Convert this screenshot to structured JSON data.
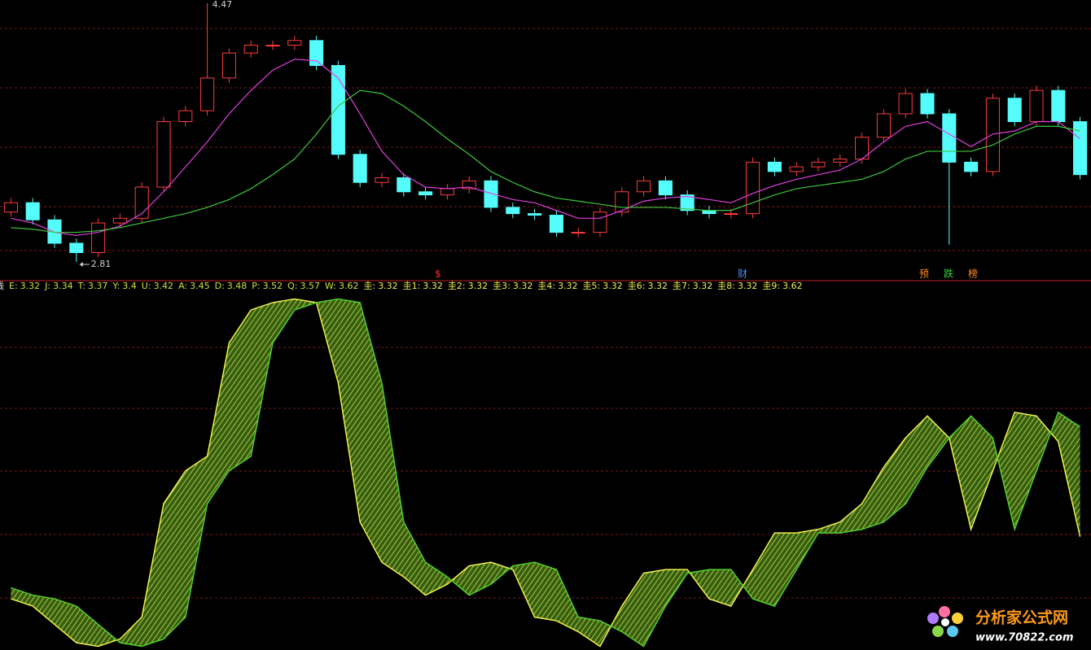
{
  "chart_data": [
    {
      "type": "candlestick",
      "open": [
        3.13,
        3.19,
        3.08,
        2.93,
        2.87,
        3.06,
        3.09,
        3.29,
        3.71,
        3.78,
        3.99,
        4.15,
        4.2,
        4.2,
        4.23,
        4.07,
        3.5,
        3.32,
        3.35,
        3.26,
        3.24,
        3.28,
        3.33,
        3.16,
        3.12,
        3.11,
        3.0,
        3.0,
        3.13,
        3.26,
        3.33,
        3.24,
        3.14,
        3.12,
        3.12,
        3.45,
        3.39,
        3.42,
        3.45,
        3.47,
        3.61,
        3.76,
        3.89,
        3.76,
        3.45,
        3.39,
        3.86,
        3.71,
        3.91,
        3.71
      ],
      "high": [
        3.22,
        3.22,
        3.11,
        2.96,
        3.09,
        3.12,
        3.32,
        3.74,
        3.81,
        4.47,
        4.18,
        4.23,
        4.23,
        4.26,
        4.26,
        4.1,
        3.53,
        3.38,
        3.38,
        3.29,
        3.31,
        3.36,
        3.36,
        3.19,
        3.15,
        3.14,
        3.03,
        3.16,
        3.29,
        3.36,
        3.36,
        3.27,
        3.17,
        3.15,
        3.48,
        3.48,
        3.45,
        3.48,
        3.5,
        3.64,
        3.79,
        3.92,
        3.92,
        3.79,
        3.48,
        3.89,
        3.89,
        3.94,
        3.94,
        3.74
      ],
      "low": [
        3.1,
        3.05,
        2.9,
        2.81,
        2.84,
        3.03,
        3.06,
        3.26,
        3.68,
        3.75,
        3.96,
        4.12,
        4.17,
        4.17,
        4.04,
        3.47,
        3.29,
        3.29,
        3.23,
        3.21,
        3.21,
        3.25,
        3.13,
        3.09,
        3.08,
        2.97,
        2.97,
        2.97,
        3.1,
        3.23,
        3.21,
        3.11,
        3.09,
        3.09,
        3.09,
        3.36,
        3.36,
        3.39,
        3.42,
        3.44,
        3.58,
        3.73,
        3.73,
        2.92,
        3.36,
        3.36,
        3.68,
        3.68,
        3.68,
        3.34
      ],
      "close": [
        3.19,
        3.08,
        2.93,
        2.87,
        3.06,
        3.09,
        3.29,
        3.71,
        3.78,
        3.99,
        4.15,
        4.2,
        4.2,
        4.23,
        4.07,
        3.5,
        3.32,
        3.35,
        3.26,
        3.24,
        3.28,
        3.33,
        3.16,
        3.12,
        3.11,
        3.0,
        3.0,
        3.13,
        3.26,
        3.33,
        3.24,
        3.14,
        3.12,
        3.12,
        3.45,
        3.39,
        3.42,
        3.45,
        3.47,
        3.61,
        3.76,
        3.89,
        3.76,
        3.45,
        3.39,
        3.86,
        3.71,
        3.91,
        3.71,
        3.37
      ],
      "up_color": "#ff3c3c",
      "down_color": "#54fcfc",
      "ylim": [
        2.69,
        4.49
      ],
      "series": [
        {
          "color": "#e040e0",
          "values": [
            3.09,
            3.06,
            3.0,
            2.98,
            3.0,
            3.04,
            3.12,
            3.26,
            3.42,
            3.58,
            3.76,
            3.91,
            4.04,
            4.11,
            4.1,
            3.99,
            3.76,
            3.52,
            3.37,
            3.29,
            3.28,
            3.29,
            3.25,
            3.21,
            3.19,
            3.14,
            3.09,
            3.09,
            3.14,
            3.2,
            3.22,
            3.23,
            3.21,
            3.19,
            3.25,
            3.3,
            3.34,
            3.37,
            3.4,
            3.47,
            3.58,
            3.68,
            3.71,
            3.63,
            3.55,
            3.63,
            3.65,
            3.71,
            3.71,
            3.6
          ]
        },
        {
          "color": "#3cc83c",
          "values": [
            3.03,
            3.02,
            3.0,
            3.0,
            3.01,
            3.03,
            3.06,
            3.09,
            3.12,
            3.16,
            3.21,
            3.28,
            3.37,
            3.47,
            3.63,
            3.81,
            3.91,
            3.89,
            3.81,
            3.71,
            3.6,
            3.5,
            3.39,
            3.32,
            3.26,
            3.22,
            3.2,
            3.18,
            3.16,
            3.16,
            3.16,
            3.15,
            3.14,
            3.14,
            3.19,
            3.24,
            3.28,
            3.3,
            3.32,
            3.34,
            3.39,
            3.47,
            3.52,
            3.52,
            3.52,
            3.56,
            3.63,
            3.68,
            3.68,
            3.65
          ]
        }
      ],
      "markers": [
        "$",
        "财",
        "预",
        "跌",
        "榜"
      ]
    },
    {
      "type": "line",
      "indicator_name": "线",
      "readouts": [
        {
          "label": "E:",
          "value": 3.32
        },
        {
          "label": "J:",
          "value": 3.34
        },
        {
          "label": "T:",
          "value": 3.37
        },
        {
          "label": "Y:",
          "value": 3.4
        },
        {
          "label": "U:",
          "value": 3.42
        },
        {
          "label": "A:",
          "value": 3.45
        },
        {
          "label": "D:",
          "value": 3.48
        },
        {
          "label": "P:",
          "value": 3.52
        },
        {
          "label": "Q:",
          "value": 3.57
        },
        {
          "label": "W:",
          "value": 3.62
        },
        {
          "label": "圭:",
          "value": 3.32
        },
        {
          "label": "圭1:",
          "value": 3.32
        },
        {
          "label": "圭2:",
          "value": 3.32
        },
        {
          "label": "圭3:",
          "value": 3.32
        },
        {
          "label": "圭4:",
          "value": 3.32
        },
        {
          "label": "圭5:",
          "value": 3.32
        },
        {
          "label": "圭6:",
          "value": 3.32
        },
        {
          "label": "圭7:",
          "value": 3.32
        },
        {
          "label": "圭8:",
          "value": 3.32
        },
        {
          "label": "圭9:",
          "value": 3.62
        }
      ],
      "ylim": [
        3.01,
        4.02
      ],
      "series": [
        {
          "color": "#f0f050",
          "values": [
            3.15,
            3.13,
            3.08,
            3.03,
            3.02,
            3.04,
            3.1,
            3.41,
            3.5,
            3.54,
            3.85,
            3.94,
            3.96,
            3.97,
            3.96,
            3.74,
            3.36,
            3.25,
            3.21,
            3.16,
            3.19,
            3.24,
            3.25,
            3.23,
            3.1,
            3.09,
            3.06,
            3.02,
            3.13,
            3.22,
            3.23,
            3.23,
            3.15,
            3.13,
            3.23,
            3.33,
            3.33,
            3.34,
            3.36,
            3.41,
            3.51,
            3.59,
            3.65,
            3.59,
            3.34,
            3.5,
            3.66,
            3.65,
            3.58,
            3.32
          ]
        },
        {
          "color": "#50d030",
          "values": [
            3.18,
            3.16,
            3.15,
            3.13,
            3.08,
            3.03,
            3.02,
            3.04,
            3.1,
            3.41,
            3.5,
            3.54,
            3.85,
            3.94,
            3.96,
            3.97,
            3.96,
            3.74,
            3.36,
            3.25,
            3.21,
            3.16,
            3.19,
            3.24,
            3.25,
            3.23,
            3.1,
            3.09,
            3.06,
            3.02,
            3.13,
            3.22,
            3.23,
            3.23,
            3.15,
            3.13,
            3.23,
            3.33,
            3.33,
            3.34,
            3.36,
            3.41,
            3.51,
            3.59,
            3.65,
            3.59,
            3.34,
            3.5,
            3.66,
            3.62
          ]
        }
      ]
    }
  ],
  "watermark": {
    "title": "分析家公式网",
    "url": "www.70822.com"
  }
}
